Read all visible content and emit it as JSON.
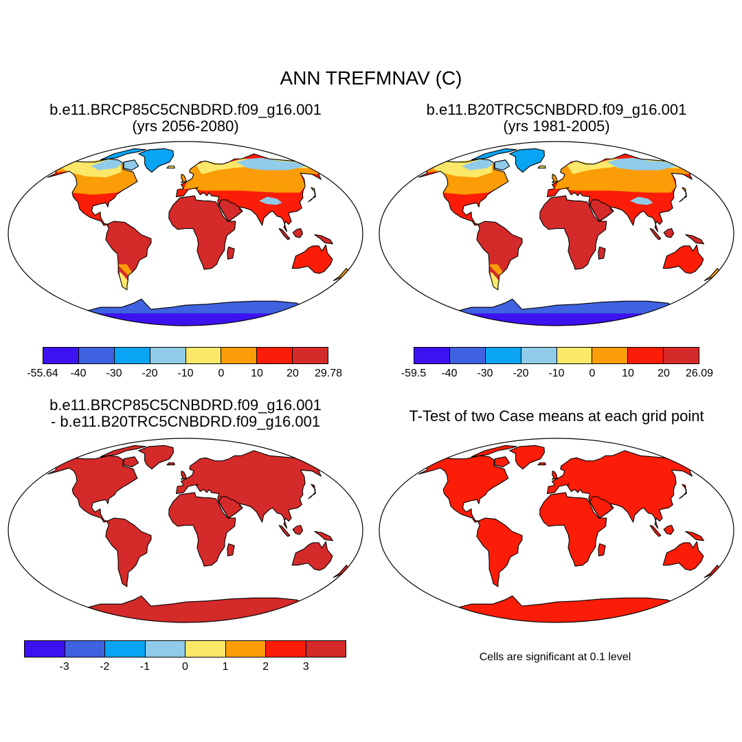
{
  "title": "ANN TREFMNAV (C)",
  "palette": [
    "#3d12f0",
    "#3f62e0",
    "#09a4f3",
    "#90cbea",
    "#fbe869",
    "#fa9d06",
    "#fb1d07",
    "#d42a29"
  ],
  "panels": [
    {
      "id": "p1",
      "title_lines": [
        "b.e11.BRCP85C5CNBDRD.f09_g16.001",
        "(yrs 2056-2080)"
      ],
      "ticks": [
        "-55.64",
        "-40",
        "-30",
        "-20",
        "-10",
        "0",
        "10",
        "20",
        "29.78"
      ],
      "tick_positions": "edges",
      "map_style": "climate"
    },
    {
      "id": "p2",
      "title_lines": [
        "b.e11.B20TRC5CNBDRD.f09_g16.001",
        "(yrs 1981-2005)"
      ],
      "ticks": [
        "-59.5",
        "-40",
        "-30",
        "-20",
        "-10",
        "0",
        "10",
        "20",
        "26.09"
      ],
      "tick_positions": "edges",
      "map_style": "climate"
    },
    {
      "id": "p3",
      "title_lines": [
        "b.e11.BRCP85C5CNBDRD.f09_g16.001",
        "- b.e11.B20TRC5CNBDRD.f09_g16.001"
      ],
      "ticks": [
        "-3",
        "-2",
        "-1",
        "0",
        "1",
        "2",
        "3"
      ],
      "tick_positions": "inner",
      "map_style": "difference"
    },
    {
      "id": "p4",
      "title_lines": [
        "T-Test of two Case means at each grid point"
      ],
      "note": "Cells are significant at 0.1 level",
      "map_style": "significance"
    }
  ]
}
